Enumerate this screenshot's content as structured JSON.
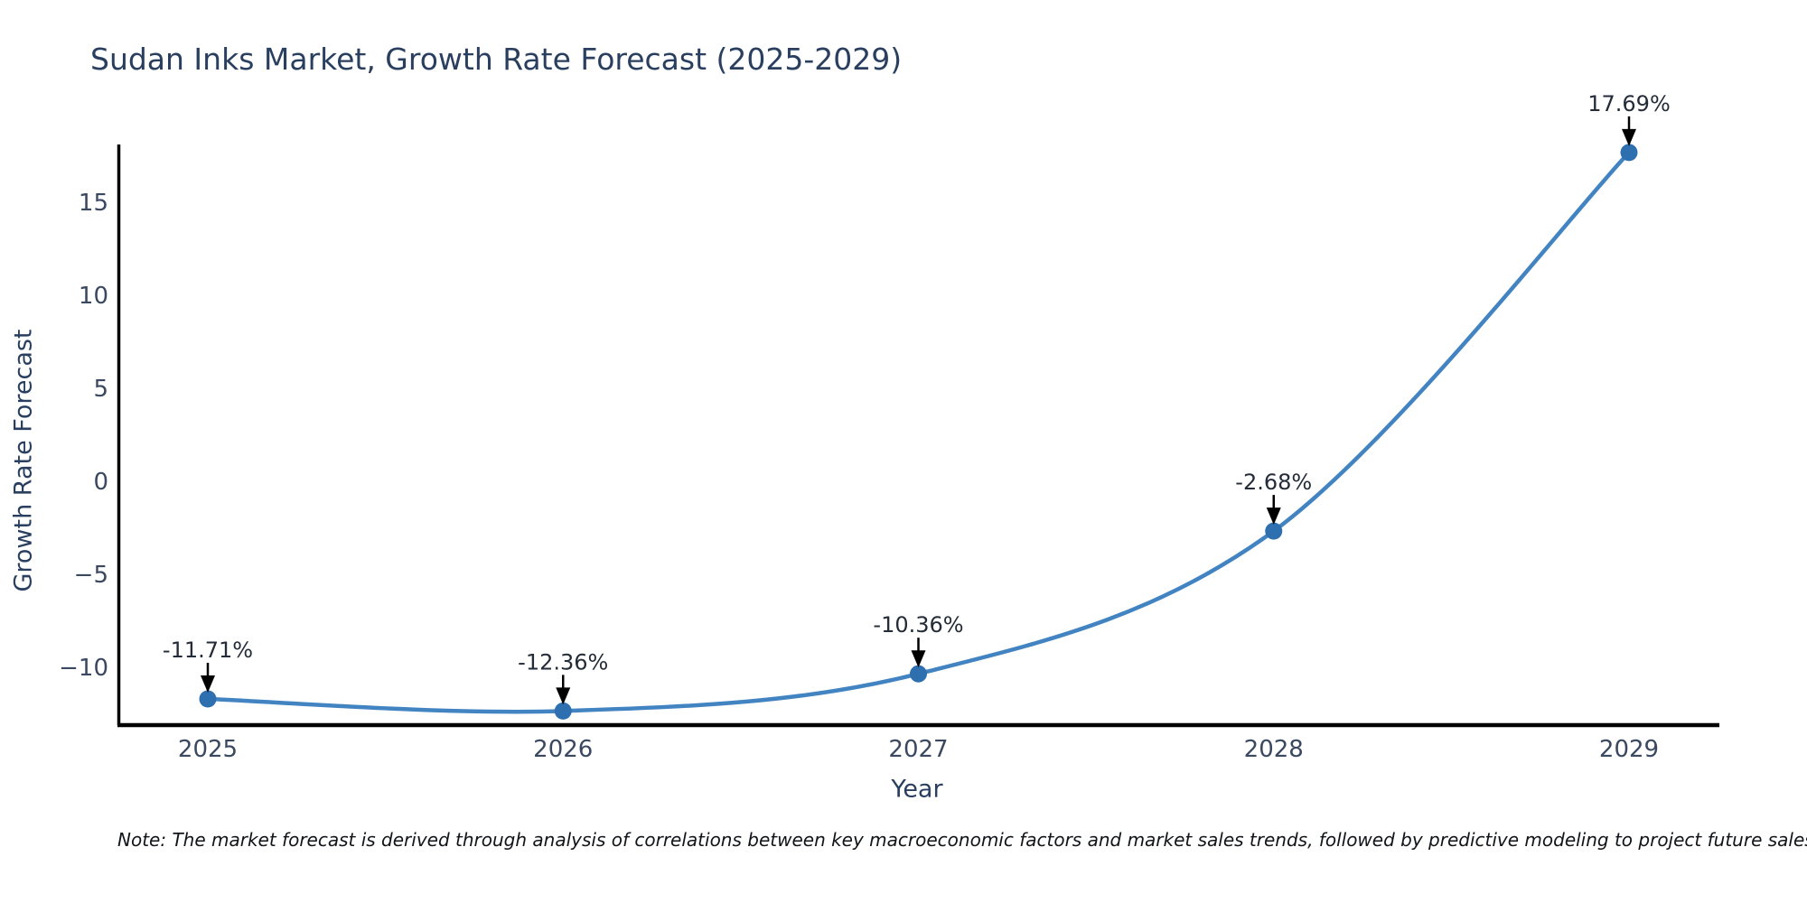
{
  "note": "Note: The market forecast is derived through analysis of correlations between key macroeconomic factors and market sales trends, followed by predictive modeling to project future sales.",
  "chart_data": {
    "type": "line",
    "title": "Sudan Inks Market, Growth Rate Forecast (2025-2029)",
    "xlabel": "Year",
    "ylabel": "Growth Rate Forecast",
    "categories": [
      "2025",
      "2026",
      "2027",
      "2028",
      "2029"
    ],
    "series": [
      {
        "name": "Growth Rate Forecast",
        "values": [
          -11.71,
          -12.36,
          -10.36,
          -2.68,
          17.69
        ]
      }
    ],
    "point_labels": [
      "-11.71%",
      "-12.36%",
      "-10.36%",
      "-2.68%",
      "17.69%"
    ],
    "yticks": [
      15,
      10,
      5,
      0,
      -5,
      -10
    ],
    "ytick_labels": [
      "15",
      "10",
      "5",
      "0",
      "−5",
      "−10"
    ],
    "ylim": [
      -13.12,
      18.12
    ],
    "line_shape": "spline",
    "grid": false,
    "legend": null,
    "annotation_arrows": "down-to-point",
    "colors": {
      "line": "#4284c2",
      "marker": "#2e6fb0",
      "axis": "#000000",
      "title_text": "#2a3f5f",
      "tick_text": "#3a4860",
      "annotation_text": "#242c38",
      "background": "#ffffff"
    }
  }
}
